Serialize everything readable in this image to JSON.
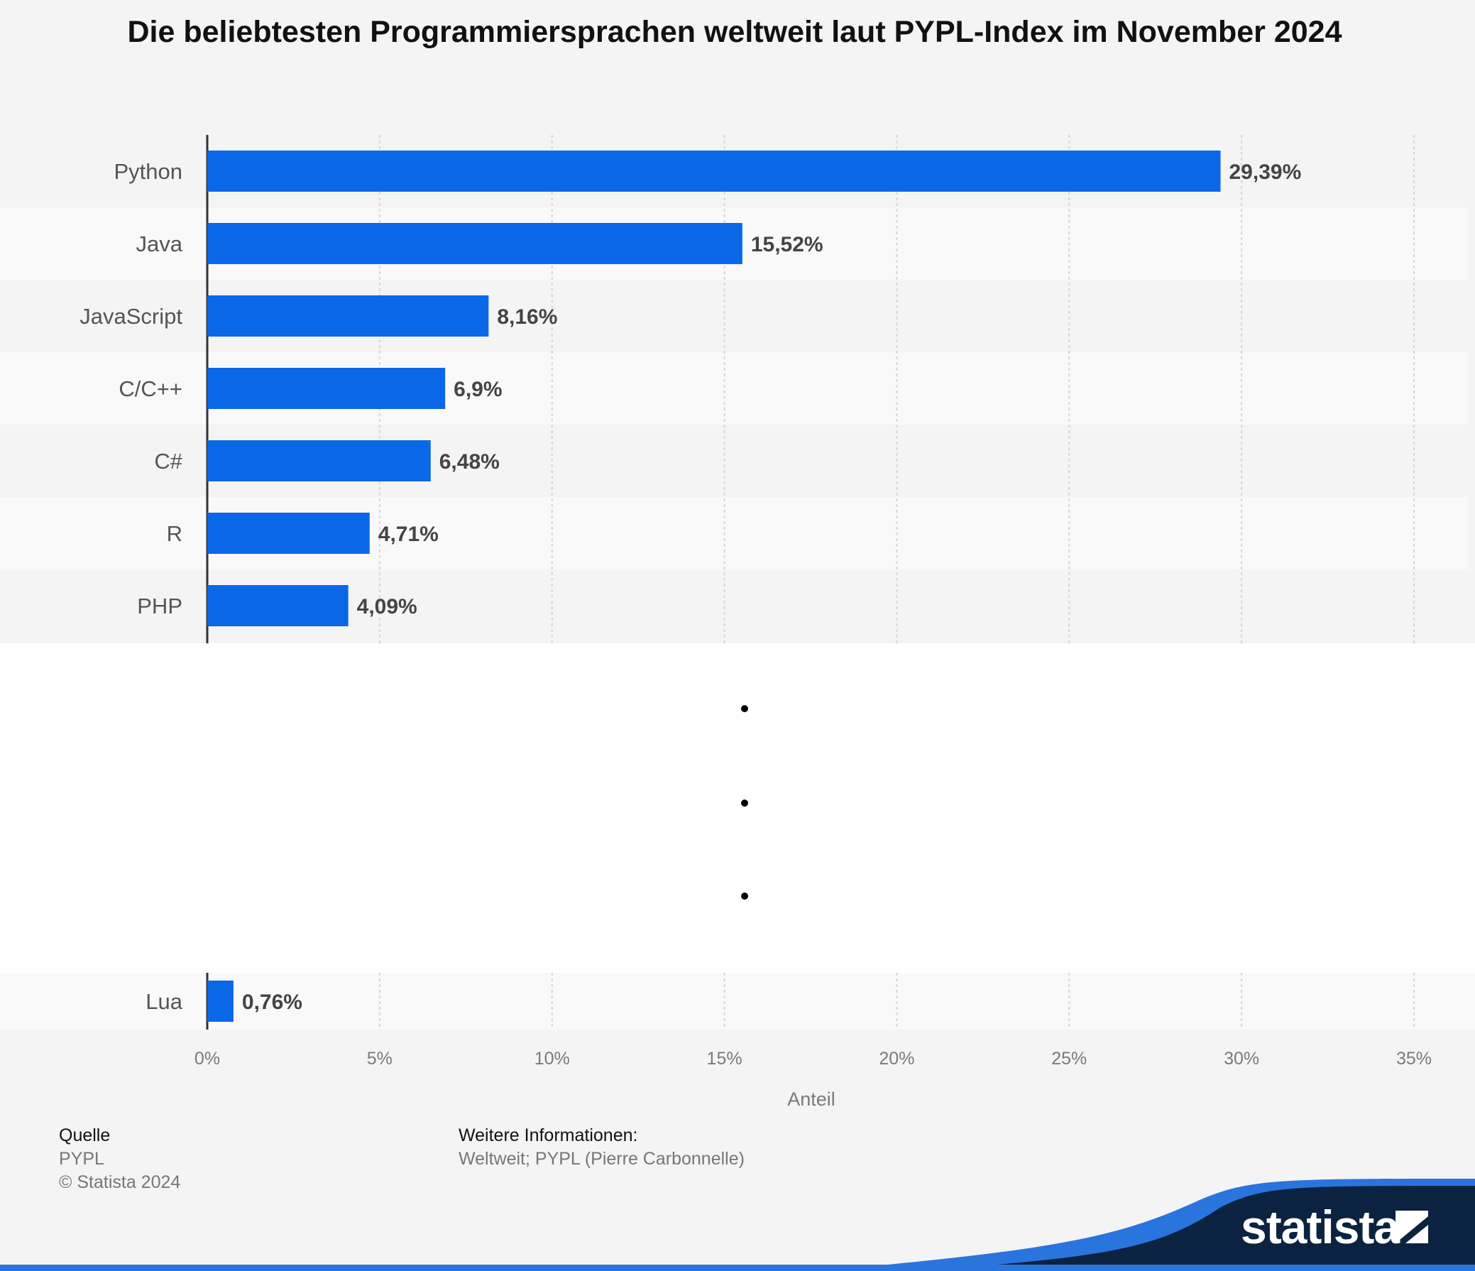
{
  "chart_data": {
    "type": "bar",
    "orientation": "horizontal",
    "title": "Die beliebtesten Programmiersprachen weltweit laut PYPL-Index im November 2024",
    "xlabel": "Anteil",
    "ylabel": "",
    "xlim": [
      0,
      35
    ],
    "x_ticks": [
      "0%",
      "5%",
      "10%",
      "15%",
      "20%",
      "25%",
      "30%",
      "35%"
    ],
    "grid": true,
    "axis_break": true,
    "categories": [
      "Python",
      "Java",
      "JavaScript",
      "C/C++",
      "C#",
      "R",
      "PHP",
      "Lua"
    ],
    "values": [
      29.39,
      15.52,
      8.16,
      6.9,
      6.48,
      4.71,
      4.09,
      0.76
    ],
    "value_labels": [
      "29,39%",
      "15,52%",
      "8,16%",
      "6,9%",
      "6,48%",
      "4,71%",
      "4,09%",
      "0,76%"
    ],
    "bar_color": "#0a67e8"
  },
  "footer": {
    "source_heading": "Quelle",
    "source": "PYPL",
    "copyright": "© Statista 2024",
    "info_heading": "Weitere Informationen:",
    "info": "Weltweit; PYPL (Pierre Carbonnelle)"
  },
  "brand": {
    "name": "statista",
    "dark_color": "#0b2340",
    "accent_color": "#2a74de"
  }
}
